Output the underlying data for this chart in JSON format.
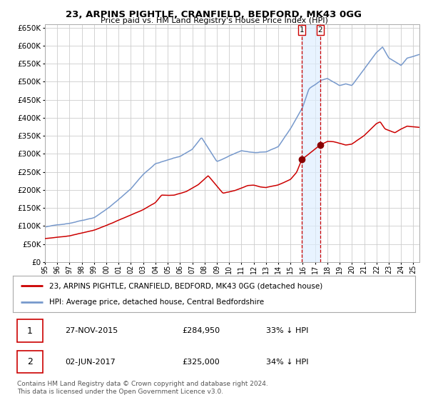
{
  "title": "23, ARPINS PIGHTLE, CRANFIELD, BEDFORD, MK43 0GG",
  "subtitle": "Price paid vs. HM Land Registry's House Price Index (HPI)",
  "legend_red": "23, ARPINS PIGHTLE, CRANFIELD, BEDFORD, MK43 0GG (detached house)",
  "legend_blue": "HPI: Average price, detached house, Central Bedfordshire",
  "transaction1_date": "27-NOV-2015",
  "transaction1_price": "£284,950",
  "transaction1_note": "33% ↓ HPI",
  "transaction2_date": "02-JUN-2017",
  "transaction2_price": "£325,000",
  "transaction2_note": "34% ↓ HPI",
  "footnote": "Contains HM Land Registry data © Crown copyright and database right 2024.\nThis data is licensed under the Open Government Licence v3.0.",
  "red_color": "#cc0000",
  "blue_color": "#7799cc",
  "marker_color": "#880000",
  "vline_color": "#cc0000",
  "shade_color": "#ddeeff",
  "background_color": "#ffffff",
  "grid_color": "#cccccc",
  "ylim": [
    0,
    660000
  ],
  "yticks": [
    0,
    50000,
    100000,
    150000,
    200000,
    250000,
    300000,
    350000,
    400000,
    450000,
    500000,
    550000,
    600000,
    650000
  ],
  "xlim_start": 1995.0,
  "xlim_end": 2025.5,
  "transaction1_x": 2015.92,
  "transaction2_x": 2017.42,
  "transaction1_y": 284950,
  "transaction2_y": 325000
}
